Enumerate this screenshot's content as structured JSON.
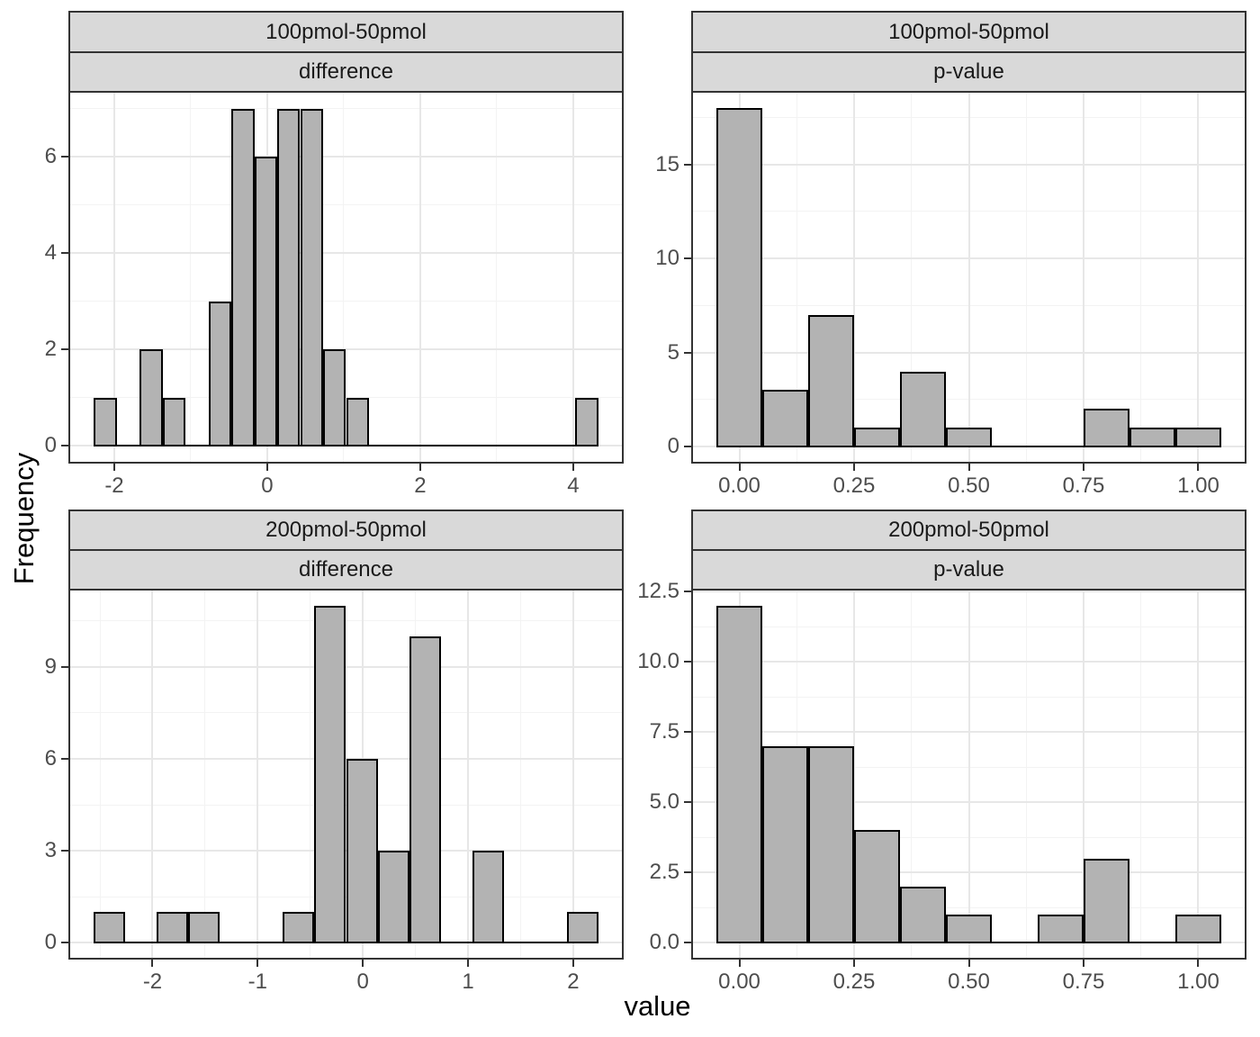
{
  "figure": {
    "x_title": "value",
    "y_title": "Frequency"
  },
  "colors": {
    "bar_fill": "#b3b3b3",
    "bar_stroke": "#000000",
    "strip_background": "#d9d9d9",
    "panel_border": "#333333",
    "grid_major": "#e7e7e7",
    "grid_minor": "#f3f3f3",
    "tick_label": "#4d4d4d"
  },
  "chart_data": {
    "type": "bar",
    "subtype": "faceted-histograms",
    "x_title": "value",
    "y_title": "Frequency",
    "grid": "on",
    "panels": [
      {
        "id": "top-left",
        "strip_top": "100pmol-50pmol",
        "strip_bottom": "difference",
        "row": 0,
        "col": 0,
        "x": {
          "domain": [
            -2.6,
            4.66
          ],
          "major": [
            -2,
            0,
            2,
            4
          ],
          "minor": [
            -1,
            1,
            3
          ],
          "labels": [
            "-2",
            "0",
            "2",
            "4"
          ]
        },
        "y": {
          "domain": [
            -0.37,
            7.37
          ],
          "major": [
            0,
            2,
            4,
            6
          ],
          "minor": [
            1,
            3,
            5,
            7
          ],
          "labels": [
            "0",
            "2",
            "4",
            "6"
          ]
        },
        "bins": {
          "start": -2.27,
          "width": 0.3,
          "counts": [
            1,
            0,
            2,
            1,
            0,
            3,
            7,
            6,
            7,
            7,
            2,
            1,
            0,
            0,
            0,
            0,
            0,
            0,
            0,
            0,
            0,
            1
          ]
        }
      },
      {
        "id": "top-right",
        "strip_top": "100pmol-50pmol",
        "strip_bottom": "p-value",
        "row": 0,
        "col": 1,
        "x": {
          "domain": [
            -0.105,
            1.105
          ],
          "major": [
            0,
            0.25,
            0.5,
            0.75,
            1
          ],
          "minor": [
            0.125,
            0.375,
            0.625,
            0.875
          ],
          "labels": [
            "0.00",
            "0.25",
            "0.50",
            "0.75",
            "1.00"
          ]
        },
        "y": {
          "domain": [
            -0.9,
            18.9
          ],
          "major": [
            0,
            5,
            10,
            15
          ],
          "minor": [
            2.5,
            7.5,
            12.5,
            17.5
          ],
          "labels": [
            "0",
            "5",
            "10",
            "15"
          ]
        },
        "bins": {
          "start": -0.05,
          "width": 0.1,
          "counts": [
            18,
            3,
            7,
            1,
            4,
            1,
            0,
            0,
            2,
            1,
            1
          ]
        }
      },
      {
        "id": "bottom-left",
        "strip_top": "200pmol-50pmol",
        "strip_bottom": "difference",
        "row": 1,
        "col": 0,
        "x": {
          "domain": [
            -2.8,
            2.48
          ],
          "major": [
            -2,
            -1,
            0,
            1,
            2
          ],
          "minor": [
            -2.5,
            -1.5,
            -0.5,
            0.5,
            1.5
          ],
          "labels": [
            "-2",
            "-1",
            "0",
            "1",
            "2"
          ]
        },
        "y": {
          "domain": [
            -0.55,
            11.55
          ],
          "major": [
            0,
            3,
            6,
            9
          ],
          "minor": [
            1.5,
            4.5,
            7.5,
            10.5
          ],
          "labels": [
            "0",
            "3",
            "6",
            "9"
          ]
        },
        "bins": {
          "start": -2.56,
          "width": 0.3,
          "counts": [
            1,
            0,
            1,
            1,
            0,
            0,
            1,
            11,
            6,
            3,
            10,
            0,
            3,
            0,
            0,
            1
          ]
        }
      },
      {
        "id": "bottom-right",
        "strip_top": "200pmol-50pmol",
        "strip_bottom": "p-value",
        "row": 1,
        "col": 1,
        "x": {
          "domain": [
            -0.105,
            1.105
          ],
          "major": [
            0,
            0.25,
            0.5,
            0.75,
            1
          ],
          "minor": [
            0.125,
            0.375,
            0.625,
            0.875
          ],
          "labels": [
            "0.00",
            "0.25",
            "0.50",
            "0.75",
            "1.00"
          ]
        },
        "y": {
          "domain": [
            -0.6,
            12.6
          ],
          "major": [
            0,
            2.5,
            5,
            7.5,
            10,
            12.5
          ],
          "minor": [
            1.25,
            3.75,
            6.25,
            8.75,
            11.25
          ],
          "labels": [
            "0.0",
            "2.5",
            "5.0",
            "7.5",
            "10.0",
            "12.5"
          ]
        },
        "bins": {
          "start": -0.05,
          "width": 0.1,
          "counts": [
            12,
            7,
            7,
            4,
            2,
            1,
            0,
            1,
            3,
            0,
            1
          ]
        }
      }
    ]
  }
}
